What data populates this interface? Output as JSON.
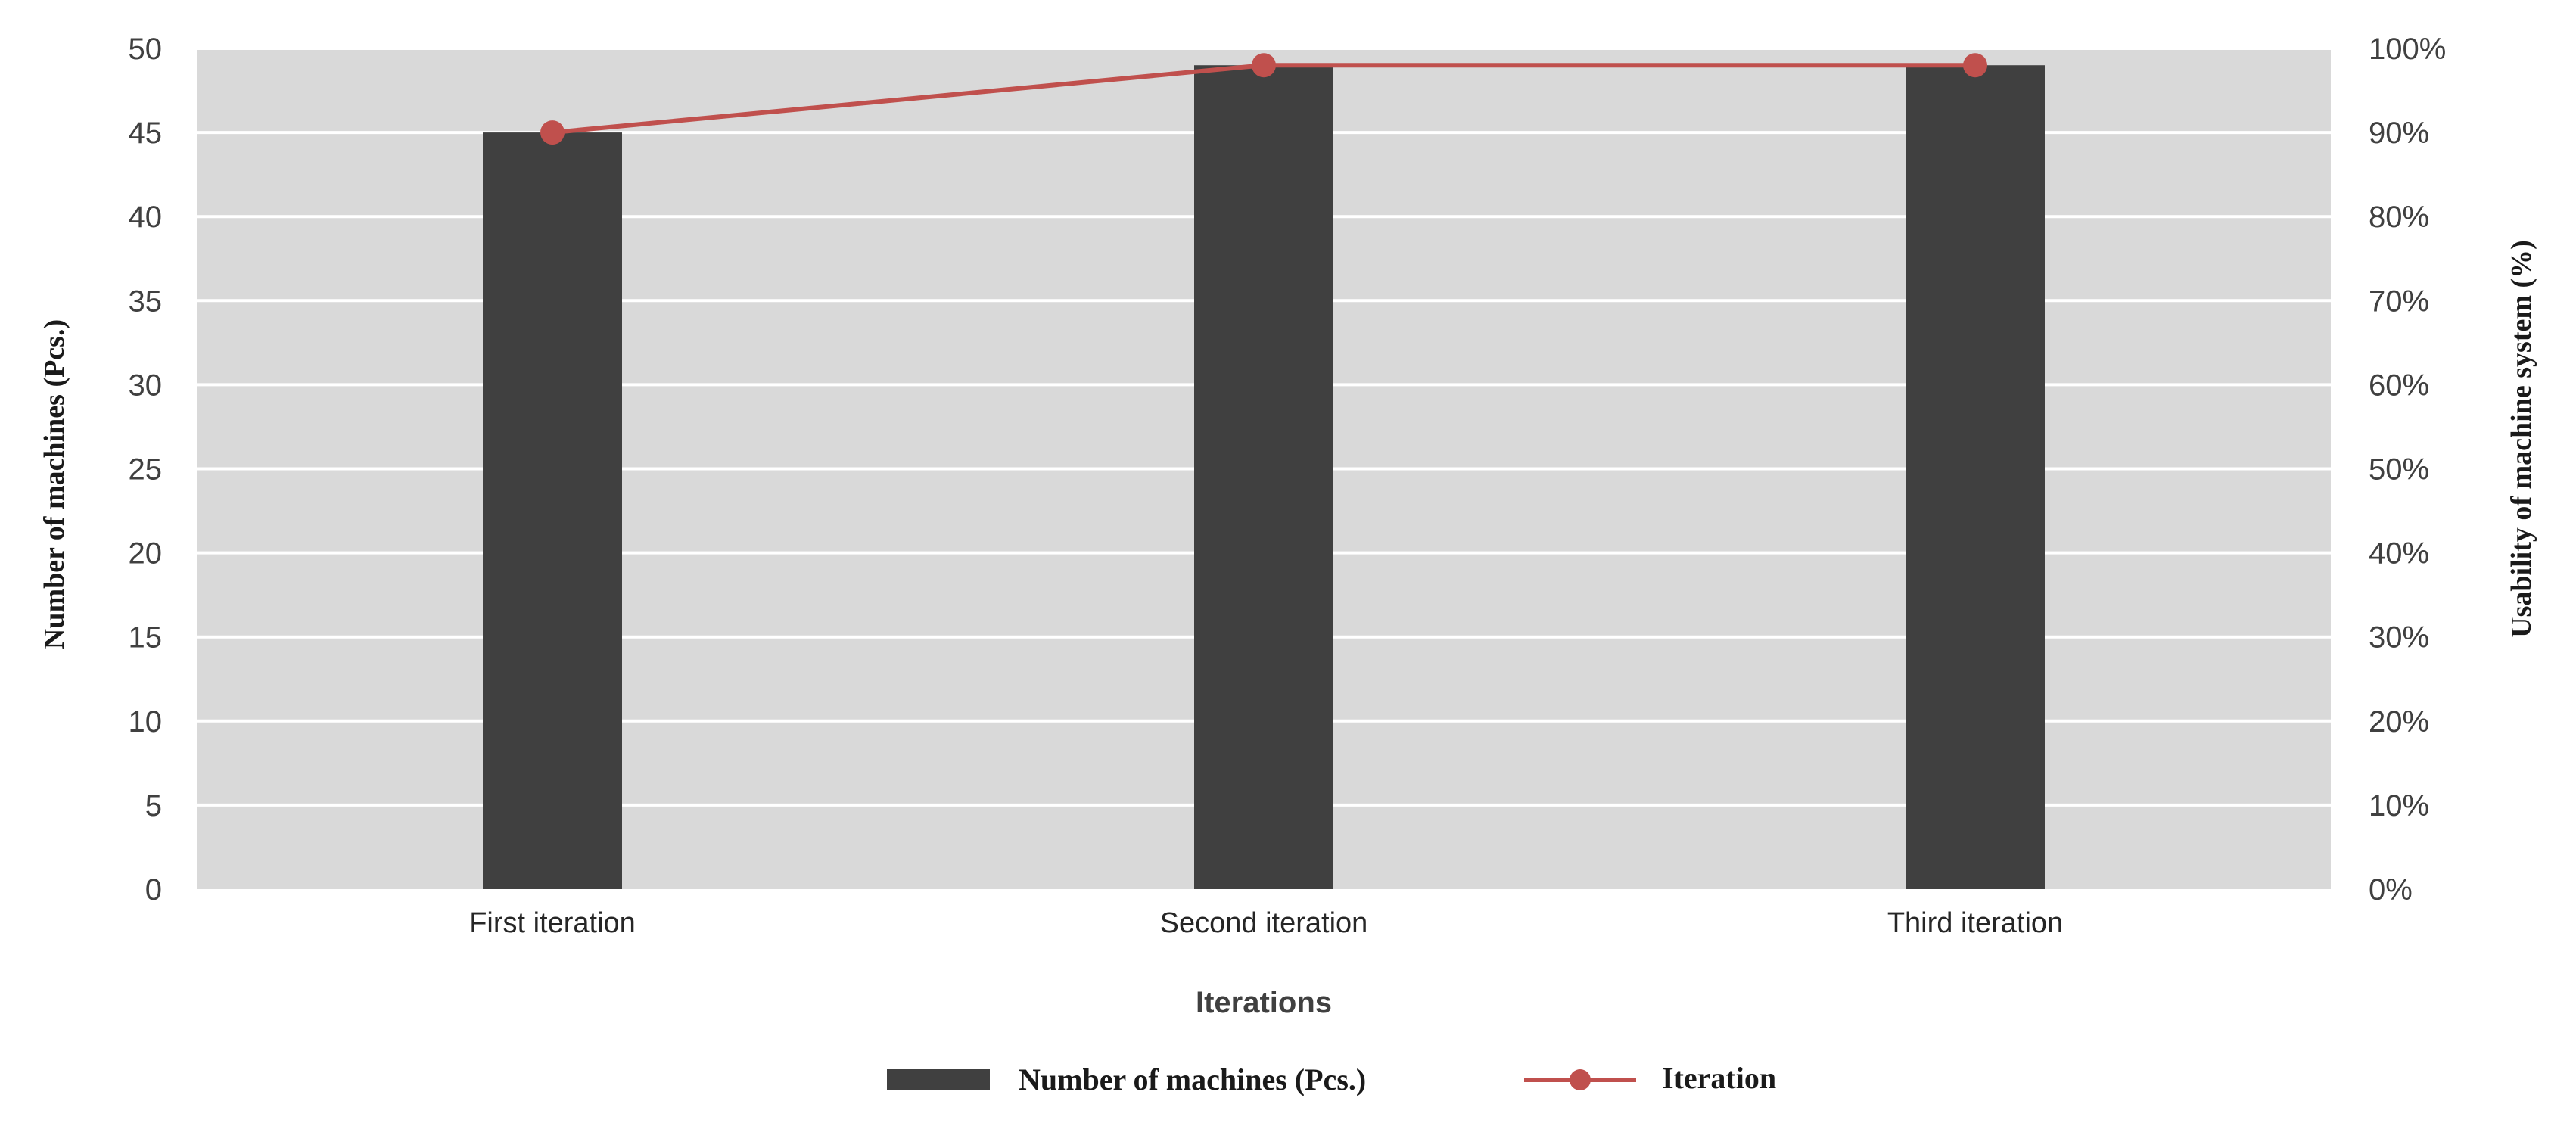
{
  "chart_data": {
    "type": "bar",
    "categories": [
      "First iteration",
      "Second iteration",
      "Third iteration"
    ],
    "series": [
      {
        "name": "Number of machines (Pcs.)",
        "type": "bar",
        "axis": "left",
        "values": [
          45,
          49,
          49
        ],
        "color": "#404040"
      },
      {
        "name": "Iteration",
        "type": "line",
        "axis": "right",
        "values": [
          90,
          98,
          98
        ],
        "color": "#c0504d"
      }
    ],
    "xlabel": "Iterations",
    "ylabel": "Number of machines (Pcs.)",
    "y2label": "Usability of machine system (%)",
    "ylim": [
      0,
      50
    ],
    "y2lim": [
      0,
      100
    ],
    "yticks": [
      "0",
      "5",
      "10",
      "15",
      "20",
      "25",
      "30",
      "35",
      "40",
      "45",
      "50"
    ],
    "y2ticks": [
      "0%",
      "10%",
      "20%",
      "30%",
      "40%",
      "50%",
      "60%",
      "70%",
      "80%",
      "90%",
      "100%"
    ],
    "grid": true,
    "plot_background": "#d9d9d9",
    "gridline_color": "#ffffff",
    "legend_position": "bottom"
  }
}
